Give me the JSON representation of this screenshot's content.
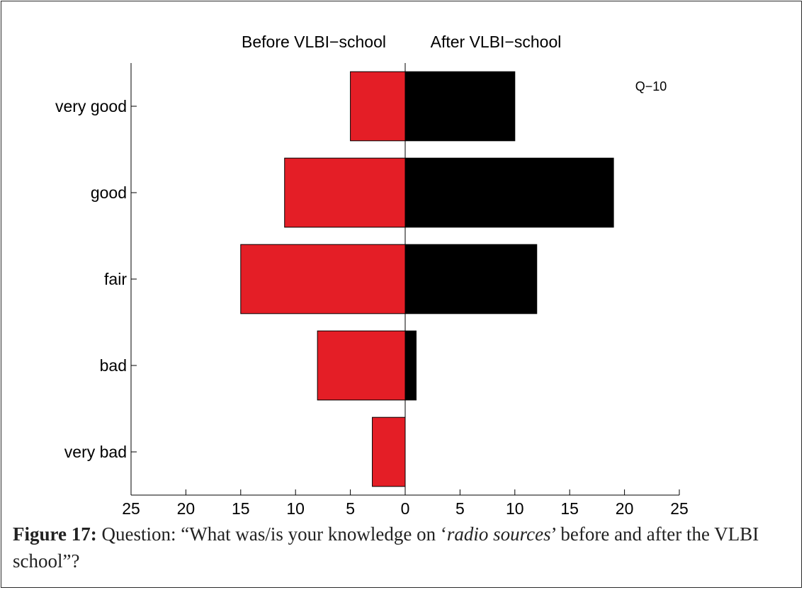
{
  "chart_data": {
    "type": "bar",
    "orientation": "horizontal-diverging",
    "categories": [
      "very good",
      "good",
      "fair",
      "bad",
      "very bad"
    ],
    "series": [
      {
        "name": "Before VLBI−school",
        "values": [
          5,
          11,
          15,
          8,
          3
        ],
        "color": "#e41e26",
        "side": "left"
      },
      {
        "name": "After VLBI−school",
        "values": [
          10,
          19,
          12,
          1,
          0
        ],
        "color": "#000000",
        "side": "right"
      }
    ],
    "xlim": [
      -25,
      25
    ],
    "xticks": [
      -25,
      -20,
      -15,
      -10,
      -5,
      0,
      5,
      10,
      15,
      20,
      25
    ],
    "xtick_labels": [
      "25",
      "20",
      "15",
      "10",
      "5",
      "0",
      "5",
      "10",
      "15",
      "20",
      "25"
    ],
    "annotation": "Q−10",
    "grid": false
  },
  "caption": {
    "label": "Figure 17:",
    "text_a": " Question: “What was/is your knowledge on ‘",
    "text_italic": "radio sources",
    "text_b": "’ before and after the VLBI school”?"
  }
}
